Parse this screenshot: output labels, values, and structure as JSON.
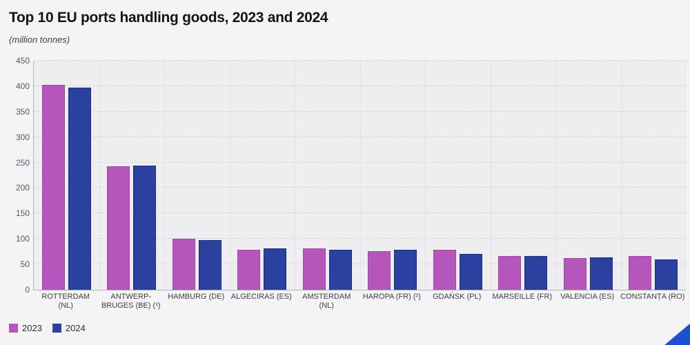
{
  "page": {
    "background": "#f4f4f6"
  },
  "chart_data": {
    "type": "bar",
    "title": "Top 10 EU ports handling goods, 2023 and 2024",
    "subtitle": "(million tonnes)",
    "categories": [
      [
        "ROTTERDAM",
        "(NL)"
      ],
      [
        "ANTWERP-",
        "BRUGES (BE) (¹)"
      ],
      [
        "HAMBURG (DE)"
      ],
      [
        "ALGECIRAS (ES)"
      ],
      [
        "AMSTERDAM",
        "(NL)"
      ],
      [
        "HAROPA (FR) (²)"
      ],
      [
        "GDAŃSK (PL)"
      ],
      [
        "MARSEILLE (FR)"
      ],
      [
        "VALENCIA (ES)"
      ],
      [
        "CONSTANȚA (RO)"
      ]
    ],
    "series": [
      {
        "name": "2023",
        "color": "#b656bd",
        "border": "#9d47a6",
        "values": [
          403,
          242,
          100,
          79,
          81,
          76,
          79,
          67,
          62,
          67
        ]
      },
      {
        "name": "2024",
        "color": "#2a41a0",
        "border": "#1d2d75",
        "values": [
          397,
          244,
          97,
          82,
          79,
          78,
          71,
          66,
          64,
          59
        ]
      }
    ],
    "ylim": [
      0,
      450
    ],
    "ytick_step": 50,
    "grid": "horizontal dashed lines, vertical dotted category separators",
    "legend_position": "bottom-left",
    "xlabel": "",
    "ylabel": ""
  },
  "accents": {
    "corner_triangle_color": "#1d4fd4"
  }
}
